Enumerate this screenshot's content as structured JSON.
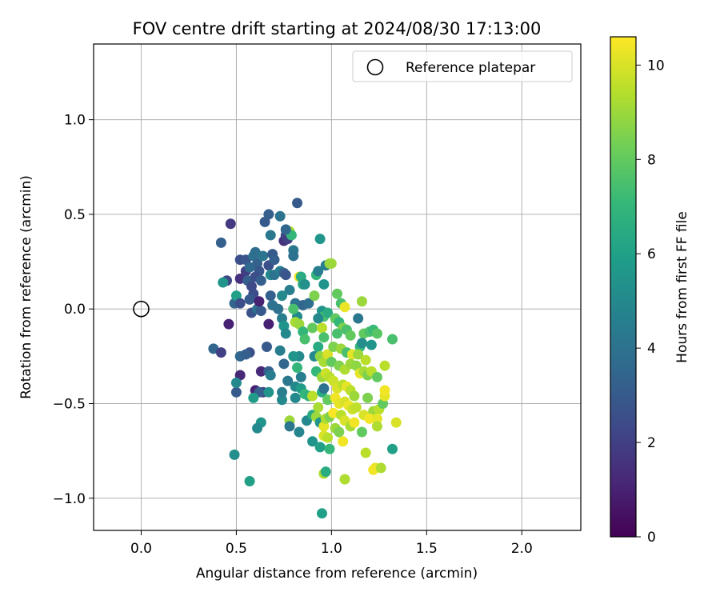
{
  "chart_data": {
    "type": "scatter",
    "title": "FOV centre drift starting at 2024/08/30 17:13:00",
    "xlabel": "Angular distance from reference (arcmin)",
    "ylabel": "Rotation from reference (arcmin)",
    "xlim": [
      -0.25,
      2.31
    ],
    "ylim": [
      -1.17,
      1.4
    ],
    "xticks": [
      0.0,
      0.5,
      1.0,
      1.5,
      2.0
    ],
    "xtick_labels": [
      "0.0",
      "0.5",
      "1.0",
      "1.5",
      "2.0"
    ],
    "yticks": [
      -1.0,
      -0.5,
      0.0,
      0.5,
      1.0
    ],
    "ytick_labels": [
      "−1.0",
      "−0.5",
      "0.0",
      "0.5",
      "1.0"
    ],
    "grid": true,
    "legend": {
      "placement": "top-right",
      "entries": [
        "Reference platepar"
      ]
    },
    "reference_point": {
      "x": 0.0,
      "y": 0.0,
      "marker": "open-circle",
      "color": "#000000"
    },
    "colorbar": {
      "label": "Hours from first FF file",
      "range": [
        0,
        10.6
      ],
      "ticks": [
        0,
        2,
        4,
        6,
        8,
        10
      ],
      "tick_labels": [
        "0",
        "2",
        "4",
        "6",
        "8",
        "10"
      ],
      "colormap": "viridis",
      "colormap_stops": [
        "#440154",
        "#482878",
        "#3e4a89",
        "#31688e",
        "#26828e",
        "#1f9e89",
        "#35b779",
        "#6ece58",
        "#b5de2b",
        "#fde725"
      ]
    },
    "points": [
      {
        "x": 0.47,
        "y": 0.45,
        "h": 1.8
      },
      {
        "x": 0.42,
        "y": 0.35,
        "h": 3.2
      },
      {
        "x": 0.38,
        "y": -0.21,
        "h": 3.5
      },
      {
        "x": 0.42,
        "y": -0.23,
        "h": 2.0
      },
      {
        "x": 0.45,
        "y": 0.15,
        "h": 2.2
      },
      {
        "x": 0.43,
        "y": 0.14,
        "h": 5.5
      },
      {
        "x": 0.46,
        "y": -0.08,
        "h": 1.0
      },
      {
        "x": 0.49,
        "y": 0.03,
        "h": 3.5
      },
      {
        "x": 0.5,
        "y": 0.07,
        "h": 6.0
      },
      {
        "x": 0.52,
        "y": 0.03,
        "h": 2.5
      },
      {
        "x": 0.5,
        "y": -0.44,
        "h": 3.0
      },
      {
        "x": 0.52,
        "y": -0.35,
        "h": 1.2
      },
      {
        "x": 0.5,
        "y": -0.39,
        "h": 5.0
      },
      {
        "x": 0.52,
        "y": -0.25,
        "h": 3.5
      },
      {
        "x": 0.52,
        "y": 0.16,
        "h": 1.5
      },
      {
        "x": 0.52,
        "y": 0.26,
        "h": 2.5
      },
      {
        "x": 0.55,
        "y": 0.2,
        "h": 2.0
      },
      {
        "x": 0.55,
        "y": 0.26,
        "h": 2.8
      },
      {
        "x": 0.56,
        "y": 0.15,
        "h": 3.2
      },
      {
        "x": 0.57,
        "y": 0.22,
        "h": 3.6
      },
      {
        "x": 0.58,
        "y": 0.12,
        "h": 2.4
      },
      {
        "x": 0.59,
        "y": 0.28,
        "h": 4.0
      },
      {
        "x": 0.6,
        "y": 0.3,
        "h": 3.8
      },
      {
        "x": 0.61,
        "y": 0.24,
        "h": 3.3
      },
      {
        "x": 0.62,
        "y": 0.2,
        "h": 2.9
      },
      {
        "x": 0.6,
        "y": 0.17,
        "h": 2.6
      },
      {
        "x": 0.59,
        "y": 0.08,
        "h": 2.5
      },
      {
        "x": 0.57,
        "y": 0.05,
        "h": 3.0
      },
      {
        "x": 0.58,
        "y": -0.02,
        "h": 2.7
      },
      {
        "x": 0.61,
        "y": 0.0,
        "h": 3.9
      },
      {
        "x": 0.63,
        "y": -0.01,
        "h": 3.0
      },
      {
        "x": 0.62,
        "y": 0.04,
        "h": 1.0
      },
      {
        "x": 0.63,
        "y": 0.15,
        "h": 3.2
      },
      {
        "x": 0.64,
        "y": 0.28,
        "h": 4.1
      },
      {
        "x": 0.65,
        "y": 0.46,
        "h": 3.0
      },
      {
        "x": 0.67,
        "y": 0.5,
        "h": 3.2
      },
      {
        "x": 0.68,
        "y": 0.39,
        "h": 4.2
      },
      {
        "x": 0.67,
        "y": 0.23,
        "h": 2.6
      },
      {
        "x": 0.69,
        "y": 0.29,
        "h": 3.0
      },
      {
        "x": 0.7,
        "y": 0.26,
        "h": 3.2
      },
      {
        "x": 0.68,
        "y": 0.18,
        "h": 5.0
      },
      {
        "x": 0.7,
        "y": 0.18,
        "h": 4.0
      },
      {
        "x": 0.68,
        "y": 0.07,
        "h": 3.2
      },
      {
        "x": 0.69,
        "y": 0.02,
        "h": 4.0
      },
      {
        "x": 0.67,
        "y": -0.08,
        "h": 1.0
      },
      {
        "x": 0.66,
        "y": -0.2,
        "h": 3.0
      },
      {
        "x": 0.63,
        "y": -0.33,
        "h": 1.2
      },
      {
        "x": 0.64,
        "y": -0.44,
        "h": 2.0
      },
      {
        "x": 0.6,
        "y": -0.43,
        "h": 1.0
      },
      {
        "x": 0.62,
        "y": -0.44,
        "h": 3.2
      },
      {
        "x": 0.59,
        "y": -0.47,
        "h": 5.8
      },
      {
        "x": 0.57,
        "y": -0.23,
        "h": 2.6
      },
      {
        "x": 0.55,
        "y": -0.24,
        "h": 3.2
      },
      {
        "x": 0.63,
        "y": -0.6,
        "h": 5.5
      },
      {
        "x": 0.61,
        "y": -0.63,
        "h": 5.0
      },
      {
        "x": 0.57,
        "y": -0.91,
        "h": 6.0
      },
      {
        "x": 0.49,
        "y": -0.77,
        "h": 5.2
      },
      {
        "x": 0.67,
        "y": -0.33,
        "h": 3.2
      },
      {
        "x": 0.68,
        "y": -0.35,
        "h": 4.5
      },
      {
        "x": 0.67,
        "y": -0.44,
        "h": 5.5
      },
      {
        "x": 0.73,
        "y": 0.49,
        "h": 4.0
      },
      {
        "x": 0.75,
        "y": 0.36,
        "h": 1.5
      },
      {
        "x": 0.76,
        "y": 0.39,
        "h": 2.2
      },
      {
        "x": 0.77,
        "y": 0.37,
        "h": 2.0
      },
      {
        "x": 0.78,
        "y": 0.41,
        "h": 9.2
      },
      {
        "x": 0.79,
        "y": 0.39,
        "h": 7.0
      },
      {
        "x": 0.76,
        "y": 0.42,
        "h": 3.5
      },
      {
        "x": 0.8,
        "y": 0.31,
        "h": 4.2
      },
      {
        "x": 0.82,
        "y": 0.56,
        "h": 3.0
      },
      {
        "x": 0.8,
        "y": 0.28,
        "h": 4.0
      },
      {
        "x": 0.73,
        "y": 0.2,
        "h": 4.5
      },
      {
        "x": 0.75,
        "y": 0.19,
        "h": 3.2
      },
      {
        "x": 0.76,
        "y": 0.18,
        "h": 2.8
      },
      {
        "x": 0.78,
        "y": 0.1,
        "h": 4.5
      },
      {
        "x": 0.74,
        "y": 0.07,
        "h": 5.0
      },
      {
        "x": 0.72,
        "y": 0.0,
        "h": 4.0
      },
      {
        "x": 0.74,
        "y": -0.05,
        "h": 4.5
      },
      {
        "x": 0.75,
        "y": -0.09,
        "h": 5.5
      },
      {
        "x": 0.76,
        "y": -0.13,
        "h": 5.0
      },
      {
        "x": 0.73,
        "y": -0.22,
        "h": 4.5
      },
      {
        "x": 0.75,
        "y": -0.29,
        "h": 3.5
      },
      {
        "x": 0.77,
        "y": -0.38,
        "h": 4.2
      },
      {
        "x": 0.74,
        "y": -0.48,
        "h": 5.0
      },
      {
        "x": 0.74,
        "y": -0.44,
        "h": 4.5
      },
      {
        "x": 0.78,
        "y": -0.59,
        "h": 9.0
      },
      {
        "x": 0.78,
        "y": -0.62,
        "h": 4.2
      },
      {
        "x": 0.81,
        "y": 0.03,
        "h": 4.0
      },
      {
        "x": 0.83,
        "y": 0.17,
        "h": 10.5
      },
      {
        "x": 0.84,
        "y": 0.17,
        "h": 6.5
      },
      {
        "x": 0.85,
        "y": 0.13,
        "h": 6.3
      },
      {
        "x": 0.86,
        "y": 0.13,
        "h": 5.3
      },
      {
        "x": 0.85,
        "y": 0.02,
        "h": 3.5
      },
      {
        "x": 0.82,
        "y": -0.04,
        "h": 5.0
      },
      {
        "x": 0.8,
        "y": 0.0,
        "h": 7.5
      },
      {
        "x": 0.81,
        "y": -0.07,
        "h": 9.2
      },
      {
        "x": 0.83,
        "y": -0.08,
        "h": 9.0
      },
      {
        "x": 0.85,
        "y": -0.12,
        "h": 7.0
      },
      {
        "x": 0.86,
        "y": -0.16,
        "h": 7.5
      },
      {
        "x": 0.83,
        "y": -0.25,
        "h": 5.0
      },
      {
        "x": 0.8,
        "y": -0.25,
        "h": 5.5
      },
      {
        "x": 0.82,
        "y": -0.31,
        "h": 7.0
      },
      {
        "x": 0.84,
        "y": -0.36,
        "h": 4.5
      },
      {
        "x": 0.81,
        "y": -0.41,
        "h": 5.0
      },
      {
        "x": 0.84,
        "y": -0.42,
        "h": 5.8
      },
      {
        "x": 0.81,
        "y": -0.47,
        "h": 5.0
      },
      {
        "x": 0.86,
        "y": -0.45,
        "h": 7.0
      },
      {
        "x": 0.88,
        "y": -0.46,
        "h": 6.8
      },
      {
        "x": 0.87,
        "y": -0.59,
        "h": 5.0
      },
      {
        "x": 0.83,
        "y": -0.65,
        "h": 4.8
      },
      {
        "x": 0.9,
        "y": -0.56,
        "h": 6.5
      },
      {
        "x": 0.9,
        "y": -0.7,
        "h": 5.5
      },
      {
        "x": 0.88,
        "y": 0.03,
        "h": 3.8
      },
      {
        "x": 0.91,
        "y": 0.07,
        "h": 8.5
      },
      {
        "x": 0.92,
        "y": 0.18,
        "h": 7.0
      },
      {
        "x": 0.93,
        "y": 0.2,
        "h": 4.5
      },
      {
        "x": 0.94,
        "y": 0.37,
        "h": 5.5
      },
      {
        "x": 0.96,
        "y": 0.13,
        "h": 5.5
      },
      {
        "x": 0.97,
        "y": 0.23,
        "h": 4.5
      },
      {
        "x": 0.99,
        "y": 0.24,
        "h": 9.0
      },
      {
        "x": 0.95,
        "y": -0.01,
        "h": 5.5
      },
      {
        "x": 0.96,
        "y": -0.04,
        "h": 7.5
      },
      {
        "x": 0.98,
        "y": -0.02,
        "h": 6.5
      },
      {
        "x": 0.9,
        "y": -0.1,
        "h": 8.0
      },
      {
        "x": 0.93,
        "y": -0.05,
        "h": 5.0
      },
      {
        "x": 0.95,
        "y": -0.1,
        "h": 9.5
      },
      {
        "x": 0.96,
        "y": -0.15,
        "h": 7.5
      },
      {
        "x": 0.93,
        "y": -0.2,
        "h": 6.5
      },
      {
        "x": 0.91,
        "y": -0.25,
        "h": 5.0
      },
      {
        "x": 0.94,
        "y": -0.25,
        "h": 8.8
      },
      {
        "x": 0.96,
        "y": -0.28,
        "h": 9.2
      },
      {
        "x": 0.98,
        "y": -0.24,
        "h": 10.0
      },
      {
        "x": 0.92,
        "y": -0.33,
        "h": 7.0
      },
      {
        "x": 0.95,
        "y": -0.36,
        "h": 9.0
      },
      {
        "x": 0.97,
        "y": -0.34,
        "h": 9.8
      },
      {
        "x": 0.99,
        "y": -0.36,
        "h": 9.5
      },
      {
        "x": 0.9,
        "y": -0.46,
        "h": 9.5
      },
      {
        "x": 0.93,
        "y": -0.52,
        "h": 9.2
      },
      {
        "x": 0.95,
        "y": -0.44,
        "h": 6.5
      },
      {
        "x": 0.96,
        "y": -0.42,
        "h": 4.0
      },
      {
        "x": 0.98,
        "y": -0.48,
        "h": 8.0
      },
      {
        "x": 0.92,
        "y": -0.57,
        "h": 9.0
      },
      {
        "x": 0.94,
        "y": -0.6,
        "h": 5.5
      },
      {
        "x": 0.96,
        "y": -0.62,
        "h": 10.2
      },
      {
        "x": 0.97,
        "y": -0.58,
        "h": 9.3
      },
      {
        "x": 0.99,
        "y": -0.57,
        "h": 8.5
      },
      {
        "x": 0.96,
        "y": -0.67,
        "h": 10.0
      },
      {
        "x": 0.98,
        "y": -0.68,
        "h": 9.5
      },
      {
        "x": 0.94,
        "y": -0.73,
        "h": 6.0
      },
      {
        "x": 0.99,
        "y": -0.74,
        "h": 7.0
      },
      {
        "x": 0.96,
        "y": -0.87,
        "h": 9.3
      },
      {
        "x": 0.97,
        "y": -0.86,
        "h": 6.5
      },
      {
        "x": 0.95,
        "y": -1.08,
        "h": 6.0
      },
      {
        "x": 1.0,
        "y": 0.24,
        "h": 9.0
      },
      {
        "x": 1.03,
        "y": 0.08,
        "h": 8.0
      },
      {
        "x": 1.05,
        "y": 0.03,
        "h": 7.5
      },
      {
        "x": 1.07,
        "y": 0.01,
        "h": 10.3
      },
      {
        "x": 1.02,
        "y": -0.05,
        "h": 8.0
      },
      {
        "x": 1.04,
        "y": -0.07,
        "h": 7.0
      },
      {
        "x": 1.06,
        "y": -0.1,
        "h": 8.5
      },
      {
        "x": 1.08,
        "y": -0.11,
        "h": 7.5
      },
      {
        "x": 1.03,
        "y": -0.13,
        "h": 7.5
      },
      {
        "x": 1.1,
        "y": -0.14,
        "h": 8.0
      },
      {
        "x": 1.01,
        "y": -0.2,
        "h": 8.5
      },
      {
        "x": 1.05,
        "y": -0.21,
        "h": 9.0
      },
      {
        "x": 1.08,
        "y": -0.23,
        "h": 7.5
      },
      {
        "x": 1.11,
        "y": -0.24,
        "h": 10.2
      },
      {
        "x": 1.0,
        "y": -0.28,
        "h": 8.0
      },
      {
        "x": 1.04,
        "y": -0.3,
        "h": 8.5
      },
      {
        "x": 1.07,
        "y": -0.32,
        "h": 9.3
      },
      {
        "x": 1.1,
        "y": -0.29,
        "h": 9.0
      },
      {
        "x": 1.13,
        "y": -0.3,
        "h": 8.8
      },
      {
        "x": 1.01,
        "y": -0.38,
        "h": 9.8
      },
      {
        "x": 1.03,
        "y": -0.42,
        "h": 10.0
      },
      {
        "x": 1.06,
        "y": -0.4,
        "h": 9.5
      },
      {
        "x": 1.08,
        "y": -0.41,
        "h": 10.2
      },
      {
        "x": 1.1,
        "y": -0.43,
        "h": 9.5
      },
      {
        "x": 1.12,
        "y": -0.46,
        "h": 9.0
      },
      {
        "x": 1.02,
        "y": -0.47,
        "h": 10.4
      },
      {
        "x": 1.04,
        "y": -0.5,
        "h": 10.2
      },
      {
        "x": 1.07,
        "y": -0.49,
        "h": 10.0
      },
      {
        "x": 1.09,
        "y": -0.51,
        "h": 10.3
      },
      {
        "x": 1.11,
        "y": -0.53,
        "h": 9.8
      },
      {
        "x": 1.13,
        "y": -0.52,
        "h": 9.6
      },
      {
        "x": 1.01,
        "y": -0.55,
        "h": 10.5
      },
      {
        "x": 1.05,
        "y": -0.56,
        "h": 9.5
      },
      {
        "x": 1.07,
        "y": -0.59,
        "h": 10.0
      },
      {
        "x": 1.1,
        "y": -0.62,
        "h": 9.2
      },
      {
        "x": 1.12,
        "y": -0.6,
        "h": 10.4
      },
      {
        "x": 1.02,
        "y": -0.63,
        "h": 9.0
      },
      {
        "x": 1.04,
        "y": -0.65,
        "h": 8.5
      },
      {
        "x": 1.06,
        "y": -0.7,
        "h": 10.4
      },
      {
        "x": 1.07,
        "y": -0.9,
        "h": 9.3
      },
      {
        "x": 1.16,
        "y": 0.04,
        "h": 9.0
      },
      {
        "x": 1.14,
        "y": -0.05,
        "h": 4.2
      },
      {
        "x": 1.17,
        "y": -0.13,
        "h": 8.0
      },
      {
        "x": 1.2,
        "y": -0.12,
        "h": 7.5
      },
      {
        "x": 1.22,
        "y": -0.11,
        "h": 7.2
      },
      {
        "x": 1.24,
        "y": -0.13,
        "h": 7.8
      },
      {
        "x": 1.15,
        "y": -0.2,
        "h": 7.0
      },
      {
        "x": 1.16,
        "y": -0.18,
        "h": 5.2
      },
      {
        "x": 1.21,
        "y": -0.19,
        "h": 5.5
      },
      {
        "x": 1.14,
        "y": -0.24,
        "h": 9.0
      },
      {
        "x": 1.18,
        "y": -0.27,
        "h": 9.5
      },
      {
        "x": 1.15,
        "y": -0.34,
        "h": 10.2
      },
      {
        "x": 1.17,
        "y": -0.33,
        "h": 9.2
      },
      {
        "x": 1.19,
        "y": -0.35,
        "h": 8.5
      },
      {
        "x": 1.21,
        "y": -0.33,
        "h": 9.5
      },
      {
        "x": 1.24,
        "y": -0.36,
        "h": 8.0
      },
      {
        "x": 1.28,
        "y": -0.3,
        "h": 9.5
      },
      {
        "x": 1.19,
        "y": -0.47,
        "h": 8.5
      },
      {
        "x": 1.22,
        "y": -0.54,
        "h": 9.0
      },
      {
        "x": 1.25,
        "y": -0.53,
        "h": 9.5
      },
      {
        "x": 1.27,
        "y": -0.5,
        "h": 8.0
      },
      {
        "x": 1.28,
        "y": -0.46,
        "h": 10.2
      },
      {
        "x": 1.28,
        "y": -0.43,
        "h": 10.4
      },
      {
        "x": 1.17,
        "y": -0.56,
        "h": 10.0
      },
      {
        "x": 1.2,
        "y": -0.58,
        "h": 10.4
      },
      {
        "x": 1.24,
        "y": -0.58,
        "h": 10.2
      },
      {
        "x": 1.16,
        "y": -0.65,
        "h": 8.0
      },
      {
        "x": 1.24,
        "y": -0.62,
        "h": 9.3
      },
      {
        "x": 1.18,
        "y": -0.76,
        "h": 9.5
      },
      {
        "x": 1.23,
        "y": -0.84,
        "h": 10.2
      },
      {
        "x": 1.22,
        "y": -0.85,
        "h": 10.4
      },
      {
        "x": 1.26,
        "y": -0.84,
        "h": 9.3
      },
      {
        "x": 1.32,
        "y": -0.16,
        "h": 7.5
      },
      {
        "x": 1.32,
        "y": -0.74,
        "h": 6.0
      },
      {
        "x": 1.34,
        "y": -0.6,
        "h": 10.0
      }
    ]
  }
}
